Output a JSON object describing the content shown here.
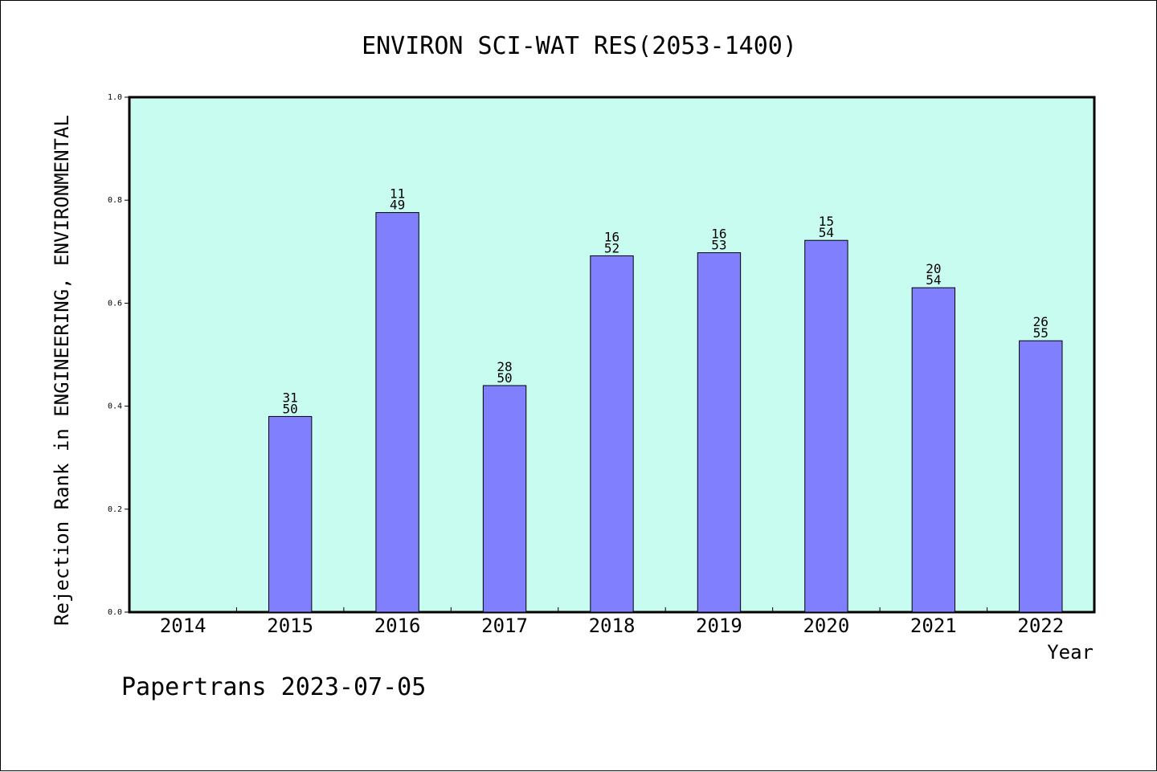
{
  "chart_data": {
    "type": "bar",
    "title": "ENVIRON SCI-WAT RES(2053-1400)",
    "xlabel": "Year",
    "ylabel": "Rejection Rank in ENGINEERING, ENVIRONMENTAL",
    "ylim": [
      0,
      1.0
    ],
    "yticks": [
      "0.0",
      "0.2",
      "0.4",
      "0.6",
      "0.8",
      "1.0"
    ],
    "categories": [
      "2014",
      "2015",
      "2016",
      "2017",
      "2018",
      "2019",
      "2020",
      "2021",
      "2022"
    ],
    "values": [
      null,
      0.38,
      0.776,
      0.44,
      0.692,
      0.698,
      0.722,
      0.63,
      0.527
    ],
    "labels": [
      null,
      {
        "rank": "31",
        "total": "50"
      },
      {
        "rank": "11",
        "total": "49"
      },
      {
        "rank": "28",
        "total": "50"
      },
      {
        "rank": "16",
        "total": "52"
      },
      {
        "rank": "16",
        "total": "53"
      },
      {
        "rank": "15",
        "total": "54"
      },
      {
        "rank": "20",
        "total": "54"
      },
      {
        "rank": "26",
        "total": "55"
      }
    ],
    "plot_background": "#c8fcf0",
    "bar_color": "#8080ff",
    "grid": false
  },
  "footer": "Papertrans 2023-07-05"
}
